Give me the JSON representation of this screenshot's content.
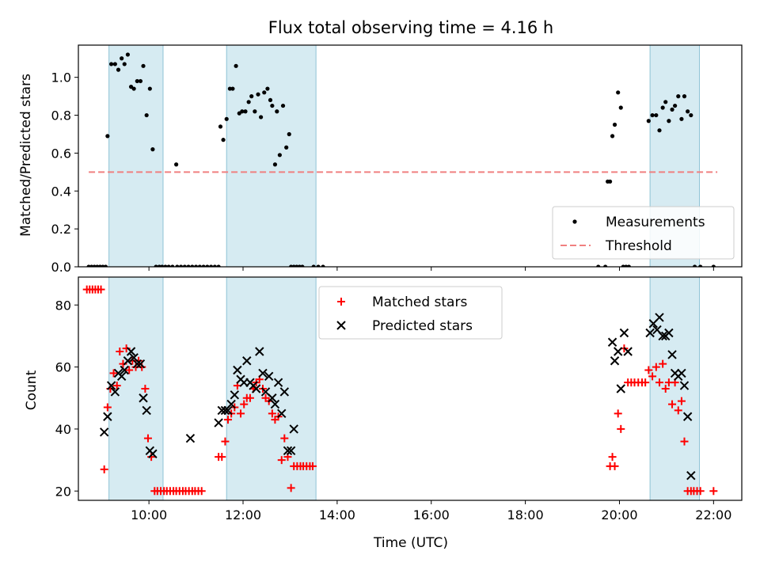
{
  "chart_data": [
    {
      "type": "scatter",
      "title": "Flux total observing time = 4.16 h",
      "xlabel": "",
      "ylabel": "Matched/Predicted stars",
      "xlim": [
        8.5,
        22.6
      ],
      "ylim": [
        0,
        1.17
      ],
      "yticks": [
        0.0,
        0.2,
        0.4,
        0.6,
        0.8,
        1.0
      ],
      "ytick_labels": [
        "0.0",
        "0.2",
        "0.4",
        "0.6",
        "0.8",
        "1.0"
      ],
      "legend_location": "lower right",
      "shaded_intervals": [
        [
          9.15,
          10.3
        ],
        [
          11.65,
          13.55
        ],
        [
          20.65,
          21.7
        ]
      ],
      "series": [
        {
          "name": "Measurements",
          "marker": "dot",
          "color": "#000000",
          "points": [
            [
              8.72,
              0
            ],
            [
              8.78,
              0
            ],
            [
              8.84,
              0
            ],
            [
              8.9,
              0
            ],
            [
              8.96,
              0
            ],
            [
              9.02,
              0
            ],
            [
              9.08,
              0
            ],
            [
              9.12,
              0.69
            ],
            [
              9.2,
              1.07
            ],
            [
              9.28,
              1.07
            ],
            [
              9.35,
              1.04
            ],
            [
              9.42,
              1.1
            ],
            [
              9.48,
              1.07
            ],
            [
              9.55,
              1.12
            ],
            [
              9.62,
              0.95
            ],
            [
              9.68,
              0.94
            ],
            [
              9.75,
              0.98
            ],
            [
              9.82,
              0.98
            ],
            [
              9.88,
              1.06
            ],
            [
              9.95,
              0.8
            ],
            [
              10.02,
              0.94
            ],
            [
              10.08,
              0.62
            ],
            [
              10.15,
              0
            ],
            [
              10.22,
              0
            ],
            [
              10.28,
              0
            ],
            [
              10.35,
              0
            ],
            [
              10.42,
              0
            ],
            [
              10.5,
              0
            ],
            [
              10.58,
              0.54
            ],
            [
              10.6,
              0
            ],
            [
              10.68,
              0
            ],
            [
              10.76,
              0
            ],
            [
              10.84,
              0
            ],
            [
              10.92,
              0
            ],
            [
              11.0,
              0
            ],
            [
              11.08,
              0
            ],
            [
              11.16,
              0
            ],
            [
              11.24,
              0
            ],
            [
              11.32,
              0
            ],
            [
              11.4,
              0
            ],
            [
              11.48,
              0
            ],
            [
              11.52,
              0.74
            ],
            [
              11.58,
              0.67
            ],
            [
              11.65,
              0.78
            ],
            [
              11.72,
              0.94
            ],
            [
              11.78,
              0.94
            ],
            [
              11.85,
              1.06
            ],
            [
              11.92,
              0.81
            ],
            [
              11.98,
              0.82
            ],
            [
              12.05,
              0.82
            ],
            [
              12.12,
              0.87
            ],
            [
              12.18,
              0.9
            ],
            [
              12.25,
              0.82
            ],
            [
              12.32,
              0.91
            ],
            [
              12.38,
              0.79
            ],
            [
              12.45,
              0.92
            ],
            [
              12.52,
              0.94
            ],
            [
              12.58,
              0.88
            ],
            [
              12.62,
              0.85
            ],
            [
              12.68,
              0.54
            ],
            [
              12.72,
              0.82
            ],
            [
              12.78,
              0.59
            ],
            [
              12.85,
              0.85
            ],
            [
              12.92,
              0.63
            ],
            [
              12.98,
              0.7
            ],
            [
              13.02,
              0
            ],
            [
              13.08,
              0
            ],
            [
              13.14,
              0
            ],
            [
              13.2,
              0
            ],
            [
              13.26,
              0
            ],
            [
              13.5,
              0
            ],
            [
              13.6,
              0
            ],
            [
              13.7,
              0
            ],
            [
              19.55,
              0
            ],
            [
              19.7,
              0
            ],
            [
              19.75,
              0.45
            ],
            [
              19.8,
              0.45
            ],
            [
              19.85,
              0.69
            ],
            [
              19.9,
              0.75
            ],
            [
              19.97,
              0.92
            ],
            [
              20.03,
              0.84
            ],
            [
              20.08,
              0
            ],
            [
              20.14,
              0
            ],
            [
              20.2,
              0
            ],
            [
              20.62,
              0.77
            ],
            [
              20.7,
              0.8
            ],
            [
              20.78,
              0.8
            ],
            [
              20.85,
              0.72
            ],
            [
              20.92,
              0.84
            ],
            [
              20.98,
              0.87
            ],
            [
              21.05,
              0.77
            ],
            [
              21.12,
              0.83
            ],
            [
              21.18,
              0.85
            ],
            [
              21.25,
              0.9
            ],
            [
              21.32,
              0.78
            ],
            [
              21.38,
              0.9
            ],
            [
              21.45,
              0.82
            ],
            [
              21.52,
              0.8
            ],
            [
              21.6,
              0
            ],
            [
              21.72,
              0
            ],
            [
              22.0,
              0
            ]
          ]
        },
        {
          "name": "Threshold",
          "style": "dashed",
          "color": "#f08080",
          "x": [
            8.72,
            22.08
          ],
          "y": [
            0.5,
            0.5
          ]
        }
      ]
    },
    {
      "type": "scatter",
      "title": "",
      "xlabel": "Time (UTC)",
      "ylabel": "Count",
      "xlim": [
        8.5,
        22.6
      ],
      "ylim": [
        17,
        89
      ],
      "yticks": [
        20,
        40,
        60,
        80
      ],
      "ytick_labels": [
        "20",
        "40",
        "60",
        "80"
      ],
      "xticks": [
        10,
        12,
        14,
        16,
        18,
        20,
        22
      ],
      "xtick_labels": [
        "10:00",
        "12:00",
        "14:00",
        "16:00",
        "18:00",
        "20:00",
        "22:00"
      ],
      "legend_location": "upper center",
      "shaded_intervals": [
        [
          9.15,
          10.3
        ],
        [
          11.65,
          13.55
        ],
        [
          20.65,
          21.7
        ]
      ],
      "series": [
        {
          "name": "Matched stars",
          "marker": "plus",
          "color": "#ff0000",
          "points": [
            [
              8.68,
              85
            ],
            [
              8.74,
              85
            ],
            [
              8.8,
              85
            ],
            [
              8.86,
              85
            ],
            [
              8.92,
              85
            ],
            [
              8.98,
              85
            ],
            [
              9.05,
              27
            ],
            [
              9.12,
              47
            ],
            [
              9.18,
              53
            ],
            [
              9.25,
              58
            ],
            [
              9.32,
              54
            ],
            [
              9.38,
              65
            ],
            [
              9.45,
              61
            ],
            [
              9.52,
              66
            ],
            [
              9.58,
              59
            ],
            [
              9.65,
              62
            ],
            [
              9.72,
              60
            ],
            [
              9.78,
              62
            ],
            [
              9.85,
              60
            ],
            [
              9.92,
              53
            ],
            [
              9.98,
              37
            ],
            [
              10.05,
              31
            ],
            [
              10.12,
              20
            ],
            [
              10.18,
              20
            ],
            [
              10.25,
              20
            ],
            [
              10.32,
              20
            ],
            [
              10.38,
              20
            ],
            [
              10.45,
              20
            ],
            [
              10.52,
              20
            ],
            [
              10.58,
              20
            ],
            [
              10.65,
              20
            ],
            [
              10.72,
              20
            ],
            [
              10.78,
              20
            ],
            [
              10.85,
              20
            ],
            [
              10.92,
              20
            ],
            [
              10.98,
              20
            ],
            [
              11.05,
              20
            ],
            [
              11.12,
              20
            ],
            [
              11.48,
              31
            ],
            [
              11.55,
              31
            ],
            [
              11.62,
              36
            ],
            [
              11.68,
              43
            ],
            [
              11.75,
              45
            ],
            [
              11.82,
              47
            ],
            [
              11.88,
              54
            ],
            [
              11.95,
              45
            ],
            [
              12.02,
              48
            ],
            [
              12.08,
              50
            ],
            [
              12.15,
              50
            ],
            [
              12.22,
              53
            ],
            [
              12.28,
              55
            ],
            [
              12.35,
              56
            ],
            [
              12.42,
              53
            ],
            [
              12.48,
              50
            ],
            [
              12.55,
              49
            ],
            [
              12.62,
              45
            ],
            [
              12.68,
              43
            ],
            [
              12.75,
              44
            ],
            [
              12.82,
              30
            ],
            [
              12.88,
              37
            ],
            [
              12.95,
              31
            ],
            [
              13.02,
              21
            ],
            [
              13.08,
              28
            ],
            [
              13.15,
              28
            ],
            [
              13.22,
              28
            ],
            [
              13.28,
              28
            ],
            [
              13.35,
              28
            ],
            [
              13.42,
              28
            ],
            [
              13.48,
              28
            ],
            [
              19.8,
              28
            ],
            [
              19.85,
              31
            ],
            [
              19.9,
              28
            ],
            [
              19.97,
              45
            ],
            [
              20.03,
              40
            ],
            [
              20.1,
              66
            ],
            [
              20.18,
              55
            ],
            [
              20.25,
              55
            ],
            [
              20.32,
              55
            ],
            [
              20.4,
              55
            ],
            [
              20.48,
              55
            ],
            [
              20.55,
              55
            ],
            [
              20.62,
              59
            ],
            [
              20.7,
              57
            ],
            [
              20.78,
              60
            ],
            [
              20.85,
              55
            ],
            [
              20.92,
              61
            ],
            [
              20.98,
              53
            ],
            [
              21.05,
              55
            ],
            [
              21.12,
              48
            ],
            [
              21.18,
              55
            ],
            [
              21.25,
              46
            ],
            [
              21.32,
              49
            ],
            [
              21.38,
              36
            ],
            [
              21.45,
              20
            ],
            [
              21.52,
              20
            ],
            [
              21.58,
              20
            ],
            [
              21.65,
              20
            ],
            [
              21.72,
              20
            ],
            [
              22.0,
              20
            ]
          ]
        },
        {
          "name": "Predicted stars",
          "marker": "x",
          "color": "#000000",
          "points": [
            [
              9.05,
              39
            ],
            [
              9.12,
              44
            ],
            [
              9.2,
              54
            ],
            [
              9.28,
              52
            ],
            [
              9.35,
              58
            ],
            [
              9.42,
              57
            ],
            [
              9.48,
              59
            ],
            [
              9.55,
              62
            ],
            [
              9.62,
              65
            ],
            [
              9.68,
              63
            ],
            [
              9.75,
              61
            ],
            [
              9.82,
              61
            ],
            [
              9.88,
              50
            ],
            [
              9.95,
              46
            ],
            [
              10.02,
              33
            ],
            [
              10.08,
              32
            ],
            [
              10.88,
              37
            ],
            [
              11.48,
              42
            ],
            [
              11.55,
              46
            ],
            [
              11.62,
              46
            ],
            [
              11.68,
              46
            ],
            [
              11.75,
              48
            ],
            [
              11.82,
              51
            ],
            [
              11.88,
              59
            ],
            [
              11.95,
              56
            ],
            [
              12.02,
              55
            ],
            [
              12.08,
              62
            ],
            [
              12.15,
              55
            ],
            [
              12.22,
              54
            ],
            [
              12.28,
              53
            ],
            [
              12.35,
              65
            ],
            [
              12.42,
              58
            ],
            [
              12.48,
              52
            ],
            [
              12.55,
              57
            ],
            [
              12.62,
              50
            ],
            [
              12.68,
              48
            ],
            [
              12.75,
              55
            ],
            [
              12.82,
              45
            ],
            [
              12.88,
              52
            ],
            [
              12.95,
              33
            ],
            [
              13.02,
              33
            ],
            [
              13.08,
              40
            ],
            [
              19.85,
              68
            ],
            [
              19.9,
              62
            ],
            [
              19.97,
              65
            ],
            [
              20.03,
              53
            ],
            [
              20.1,
              71
            ],
            [
              20.18,
              65
            ],
            [
              20.65,
              71
            ],
            [
              20.72,
              74
            ],
            [
              20.8,
              72
            ],
            [
              20.85,
              76
            ],
            [
              20.92,
              70
            ],
            [
              20.98,
              70
            ],
            [
              21.05,
              71
            ],
            [
              21.12,
              64
            ],
            [
              21.18,
              58
            ],
            [
              21.25,
              57
            ],
            [
              21.32,
              58
            ],
            [
              21.38,
              54
            ],
            [
              21.45,
              44
            ],
            [
              21.52,
              25
            ]
          ]
        }
      ]
    }
  ]
}
